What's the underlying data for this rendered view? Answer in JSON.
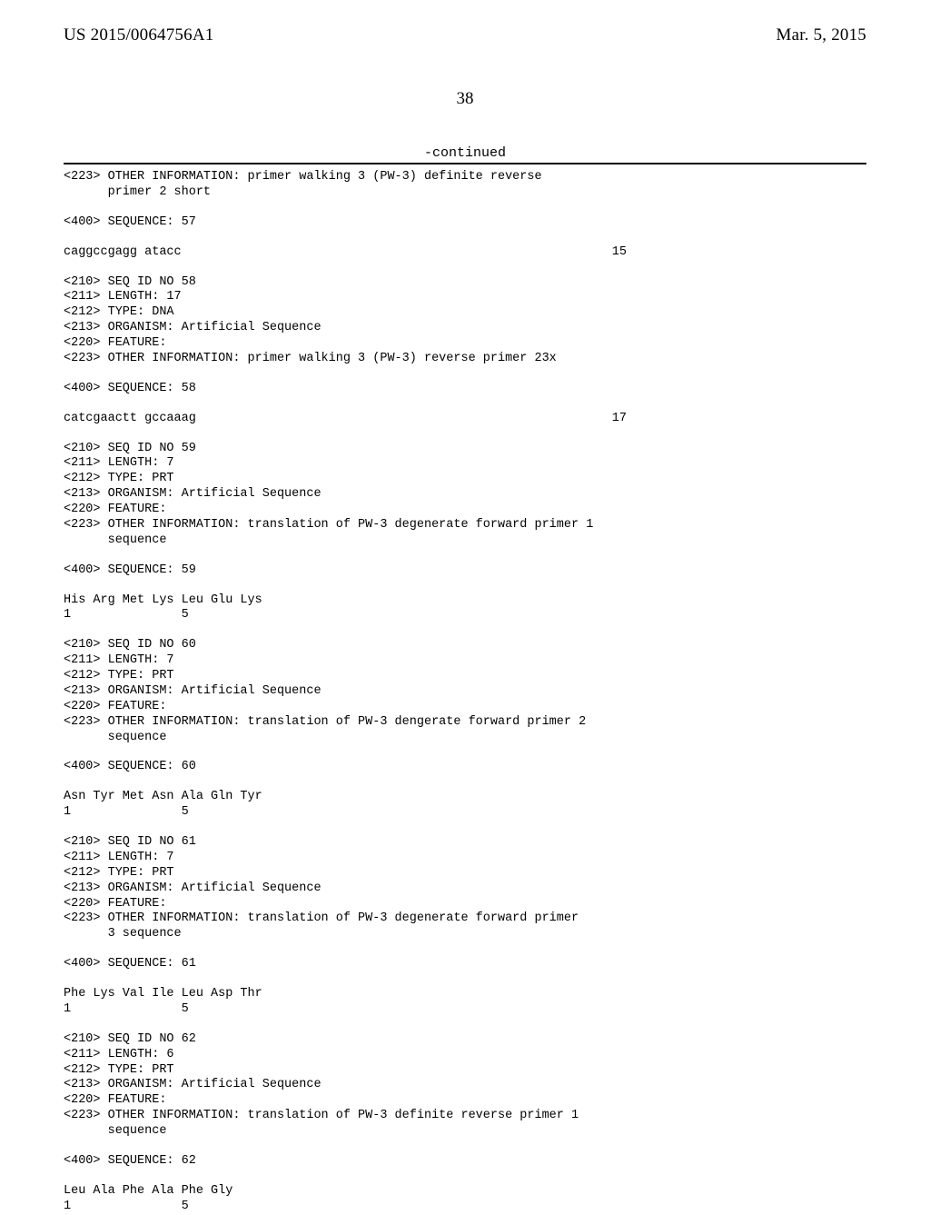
{
  "header": {
    "pub_number": "US 2015/0064756A1",
    "pub_date": "Mar. 5, 2015"
  },
  "page_number": "38",
  "continued_label": "-continued",
  "blocks": [
    {
      "type": "text",
      "lines": [
        "<223> OTHER INFORMATION: primer walking 3 (PW-3) definite reverse",
        "      primer 2 short"
      ]
    },
    {
      "type": "text",
      "lines": [
        "<400> SEQUENCE: 57"
      ]
    },
    {
      "type": "seq",
      "seq": "caggccgagg atacc",
      "num": "15"
    },
    {
      "type": "text",
      "lines": [
        "<210> SEQ ID NO 58",
        "<211> LENGTH: 17",
        "<212> TYPE: DNA",
        "<213> ORGANISM: Artificial Sequence",
        "<220> FEATURE:",
        "<223> OTHER INFORMATION: primer walking 3 (PW-3) reverse primer 23x"
      ]
    },
    {
      "type": "text",
      "lines": [
        "<400> SEQUENCE: 58"
      ]
    },
    {
      "type": "seq",
      "seq": "catcgaactt gccaaag",
      "num": "17"
    },
    {
      "type": "text",
      "lines": [
        "<210> SEQ ID NO 59",
        "<211> LENGTH: 7",
        "<212> TYPE: PRT",
        "<213> ORGANISM: Artificial Sequence",
        "<220> FEATURE:",
        "<223> OTHER INFORMATION: translation of PW-3 degenerate forward primer 1",
        "      sequence"
      ]
    },
    {
      "type": "text",
      "lines": [
        "<400> SEQUENCE: 59"
      ]
    },
    {
      "type": "text",
      "lines": [
        "His Arg Met Lys Leu Glu Lys",
        "1               5"
      ]
    },
    {
      "type": "text",
      "lines": [
        "<210> SEQ ID NO 60",
        "<211> LENGTH: 7",
        "<212> TYPE: PRT",
        "<213> ORGANISM: Artificial Sequence",
        "<220> FEATURE:",
        "<223> OTHER INFORMATION: translation of PW-3 dengerate forward primer 2",
        "      sequence"
      ]
    },
    {
      "type": "text",
      "lines": [
        "<400> SEQUENCE: 60"
      ]
    },
    {
      "type": "text",
      "lines": [
        "Asn Tyr Met Asn Ala Gln Tyr",
        "1               5"
      ]
    },
    {
      "type": "text",
      "lines": [
        "<210> SEQ ID NO 61",
        "<211> LENGTH: 7",
        "<212> TYPE: PRT",
        "<213> ORGANISM: Artificial Sequence",
        "<220> FEATURE:",
        "<223> OTHER INFORMATION: translation of PW-3 degenerate forward primer",
        "      3 sequence"
      ]
    },
    {
      "type": "text",
      "lines": [
        "<400> SEQUENCE: 61"
      ]
    },
    {
      "type": "text",
      "lines": [
        "Phe Lys Val Ile Leu Asp Thr",
        "1               5"
      ]
    },
    {
      "type": "text",
      "lines": [
        "<210> SEQ ID NO 62",
        "<211> LENGTH: 6",
        "<212> TYPE: PRT",
        "<213> ORGANISM: Artificial Sequence",
        "<220> FEATURE:",
        "<223> OTHER INFORMATION: translation of PW-3 definite reverse primer 1",
        "      sequence"
      ]
    },
    {
      "type": "text",
      "lines": [
        "<400> SEQUENCE: 62"
      ]
    },
    {
      "type": "text",
      "lines": [
        "Leu Ala Phe Ala Phe Gly",
        "1               5"
      ]
    }
  ]
}
